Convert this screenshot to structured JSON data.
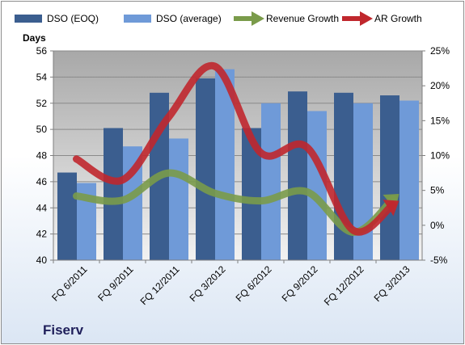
{
  "company": "Fiserv",
  "chart_data": {
    "type": "bar",
    "categories": [
      "FQ 6/2011",
      "FQ 9/2011",
      "FQ 12/2011",
      "FQ 3/2012",
      "FQ 6/2012",
      "FQ 9/2012",
      "FQ 12/2012",
      "FQ 3/2013"
    ],
    "ylabel": "Days",
    "ylim": [
      40,
      56
    ],
    "yticks": [
      40,
      42,
      44,
      46,
      48,
      50,
      52,
      54,
      56
    ],
    "y2lim": [
      -5,
      25
    ],
    "y2ticks": [
      "-5%",
      "0%",
      "5%",
      "10%",
      "15%",
      "20%",
      "25%"
    ],
    "y2tick_values": [
      -5,
      0,
      5,
      10,
      15,
      20,
      25
    ],
    "legend_position": "top",
    "series": [
      {
        "name": "DSO (EOQ)",
        "kind": "bar",
        "axis": "left",
        "color": "#3b5e8f",
        "values": [
          46.7,
          50.1,
          52.8,
          53.9,
          50.1,
          52.9,
          52.8,
          52.6
        ]
      },
      {
        "name": "DSO (average)",
        "kind": "bar",
        "axis": "left",
        "color": "#6f9ad8",
        "values": [
          45.9,
          48.7,
          49.3,
          54.6,
          52.0,
          51.4,
          52.0,
          52.2
        ]
      },
      {
        "name": "Revenue Growth",
        "kind": "line",
        "axis": "right",
        "color": "#7a9b4a",
        "values": [
          4.2,
          3.6,
          7.5,
          4.6,
          3.5,
          4.8,
          -1.0,
          4.5
        ]
      },
      {
        "name": "AR Growth",
        "kind": "line",
        "axis": "right",
        "color": "#c0272d",
        "values": [
          9.5,
          6.5,
          15.5,
          22.8,
          10.4,
          11.2,
          -0.7,
          3.5
        ]
      }
    ],
    "grid": true
  }
}
